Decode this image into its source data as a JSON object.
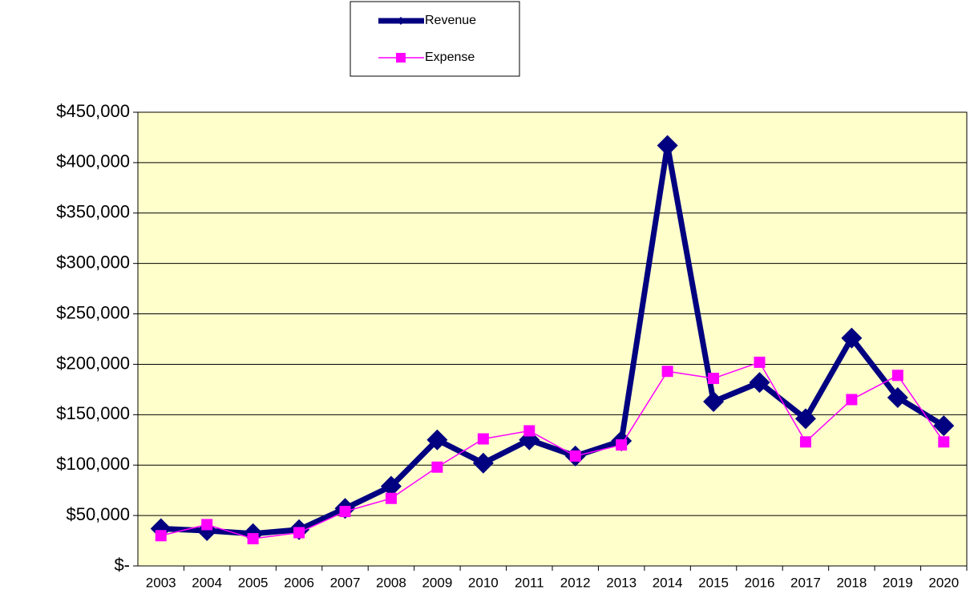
{
  "chart_data": {
    "type": "line",
    "categories": [
      "2003",
      "2004",
      "2005",
      "2006",
      "2007",
      "2008",
      "2009",
      "2010",
      "2011",
      "2012",
      "2013",
      "2014",
      "2015",
      "2016",
      "2017",
      "2018",
      "2019",
      "2020"
    ],
    "series": [
      {
        "name": "Revenue",
        "color": "#000080",
        "values": [
          37000,
          35000,
          32000,
          36000,
          57000,
          79000,
          125000,
          102000,
          125000,
          109000,
          124000,
          417000,
          163000,
          182000,
          146000,
          226000,
          167000,
          139000
        ]
      },
      {
        "name": "Expense",
        "color": "#ff00ff",
        "values": [
          30000,
          41000,
          27000,
          33000,
          54000,
          67000,
          98000,
          126000,
          134000,
          109000,
          120000,
          193000,
          186000,
          202000,
          123000,
          165000,
          189000,
          123000
        ]
      }
    ],
    "ylim": [
      0,
      450000
    ],
    "yticks": [
      {
        "value": 0,
        "label": "$-"
      },
      {
        "value": 50000,
        "label": "$50,000"
      },
      {
        "value": 100000,
        "label": "$100,000"
      },
      {
        "value": 150000,
        "label": "$150,000"
      },
      {
        "value": 200000,
        "label": "$200,000"
      },
      {
        "value": 250000,
        "label": "$250,000"
      },
      {
        "value": 300000,
        "label": "$300,000"
      },
      {
        "value": 350000,
        "label": "$350,000"
      },
      {
        "value": 400000,
        "label": "$400,000"
      },
      {
        "value": 450000,
        "label": "$450,000"
      }
    ],
    "grid": true,
    "legend": "top"
  }
}
